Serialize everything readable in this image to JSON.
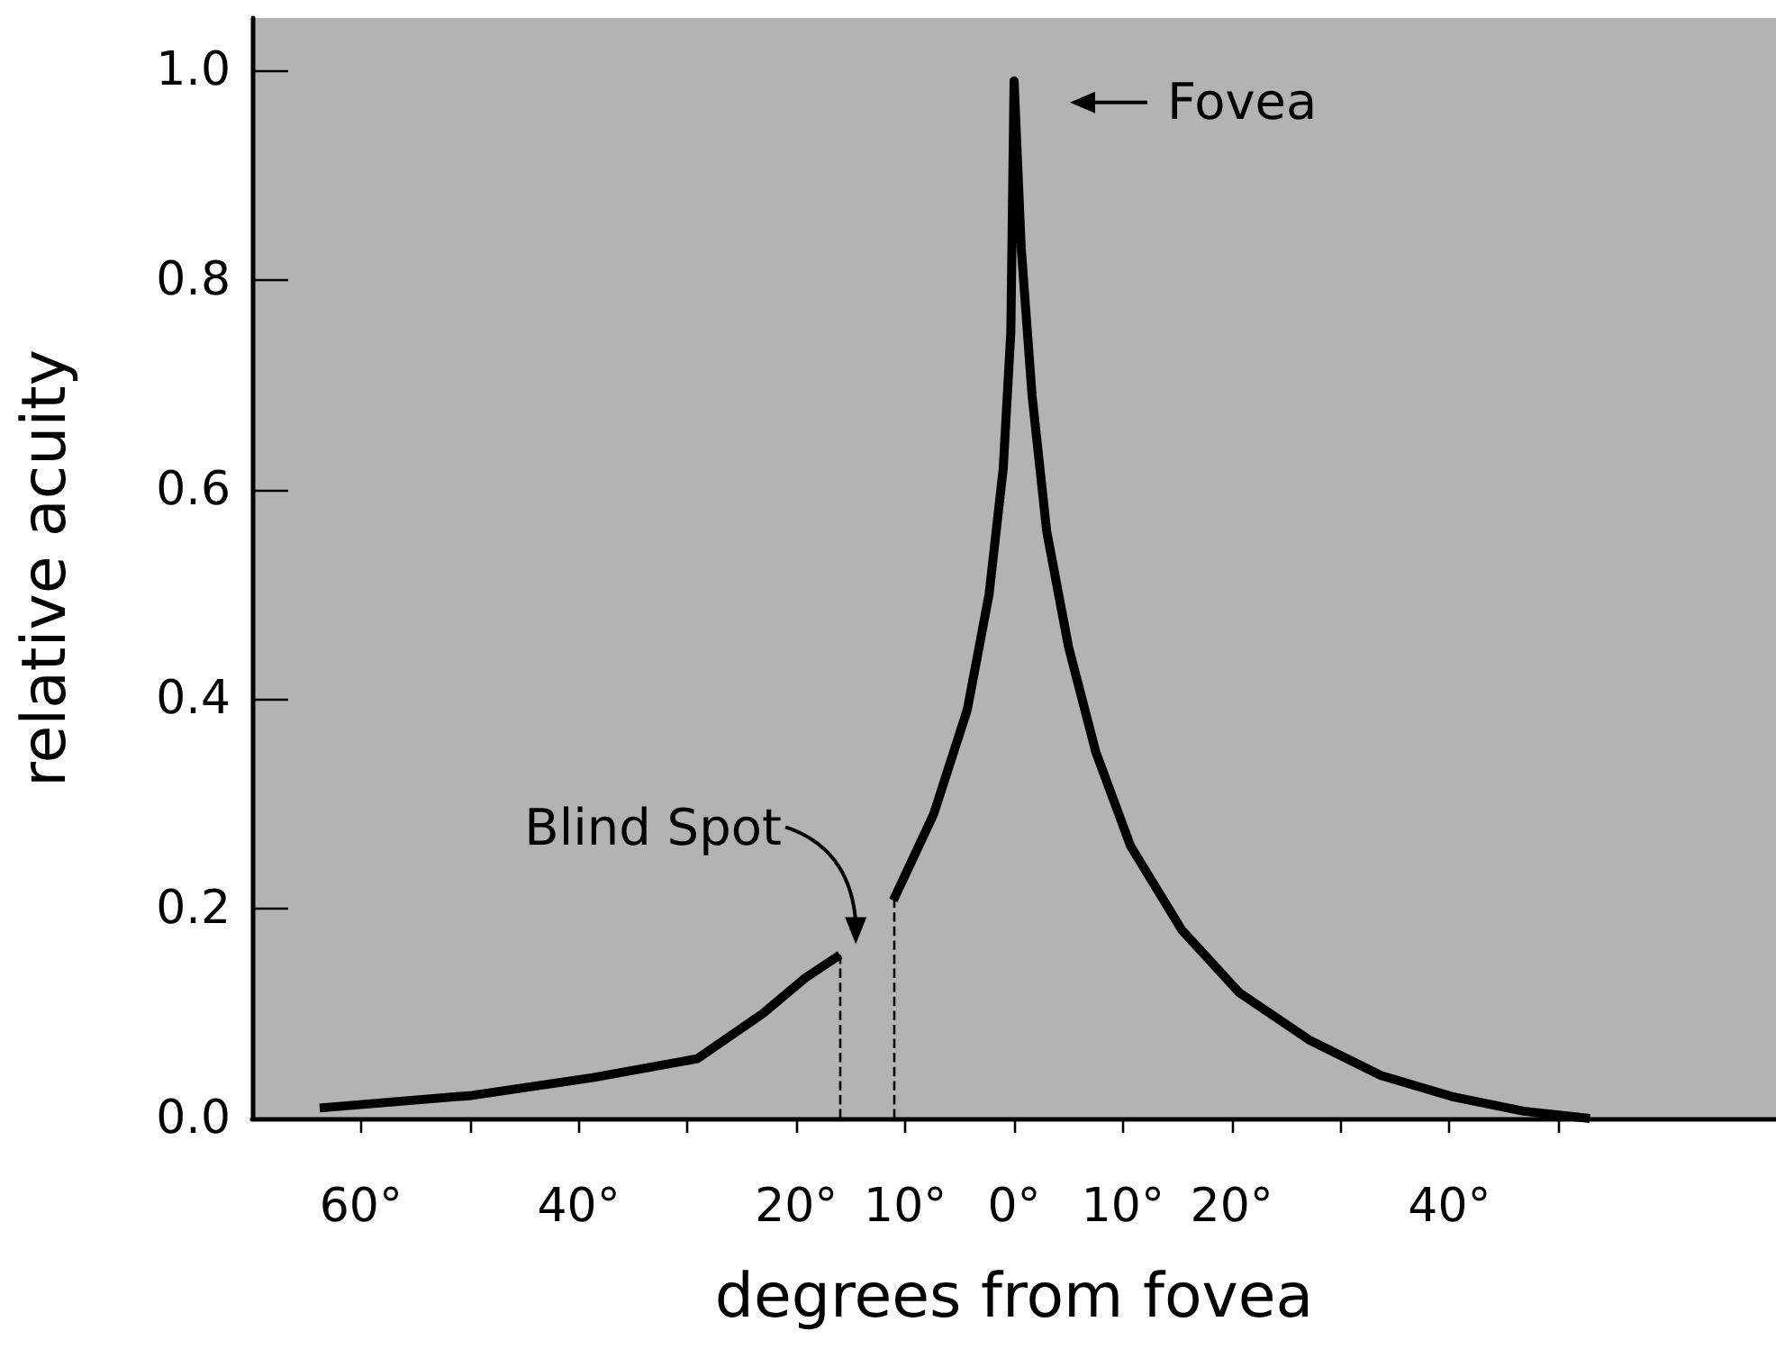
{
  "chart_data": {
    "type": "line",
    "xlabel": "degrees from fovea",
    "ylabel": "relative acuity",
    "xlim": [
      -70,
      70
    ],
    "ylim": [
      0,
      1.05
    ],
    "xticks": [
      {
        "value": -60,
        "label": "60°"
      },
      {
        "value": -50,
        "label": null
      },
      {
        "value": -40,
        "label": "40°"
      },
      {
        "value": -30,
        "label": null
      },
      {
        "value": -20,
        "label": "20°"
      },
      {
        "value": -10,
        "label": "10°"
      },
      {
        "value": 0,
        "label": "0°"
      },
      {
        "value": 10,
        "label": "10°"
      },
      {
        "value": 20,
        "label": "20°"
      },
      {
        "value": 30,
        "label": null
      },
      {
        "value": 40,
        "label": "40°"
      },
      {
        "value": 50,
        "label": null
      }
    ],
    "yticks": [
      {
        "value": 0,
        "label": "0.0"
      },
      {
        "value": 0.2,
        "label": "0.2"
      },
      {
        "value": 0.4,
        "label": "0.4"
      },
      {
        "value": 0.6,
        "label": "0.6"
      },
      {
        "value": 0.8,
        "label": "0.8"
      },
      {
        "value": 1,
        "label": "1.0"
      }
    ],
    "series": [
      {
        "color": "#000000",
        "x": [
          -63.8,
          -49.8,
          -38.7,
          -29.1,
          -23.1,
          -19.2,
          -16
        ],
        "values": [
          0.01,
          0.022,
          0.039,
          0.057,
          0.1,
          0.134,
          0.156
        ]
      },
      {
        "color": "#000000",
        "x": [
          -11.1,
          -7.4,
          -4.3,
          -2.3,
          -1,
          -0.3,
          0,
          0.66,
          1.65,
          3,
          5,
          7.5,
          10.7,
          15.4,
          20.7,
          27.1,
          33.7,
          40.2,
          46.8,
          52.9
        ],
        "values": [
          0.208,
          0.29,
          0.39,
          0.5,
          0.62,
          0.75,
          0.99,
          0.83,
          0.69,
          0.56,
          0.45,
          0.35,
          0.26,
          0.18,
          0.12,
          0.075,
          0.041,
          0.021,
          0.007,
          0.0
        ]
      }
    ],
    "ref_lines": [
      {
        "axis": "x",
        "value": -16,
        "color": "#000000",
        "line_style": "dashed"
      },
      {
        "axis": "x",
        "value": -11.1,
        "color": "#000000",
        "line_style": "dashed"
      }
    ],
    "annotations": [
      "Fovea",
      "Blind Spot"
    ],
    "grid": false,
    "marker": "none",
    "line_style": "solid"
  }
}
